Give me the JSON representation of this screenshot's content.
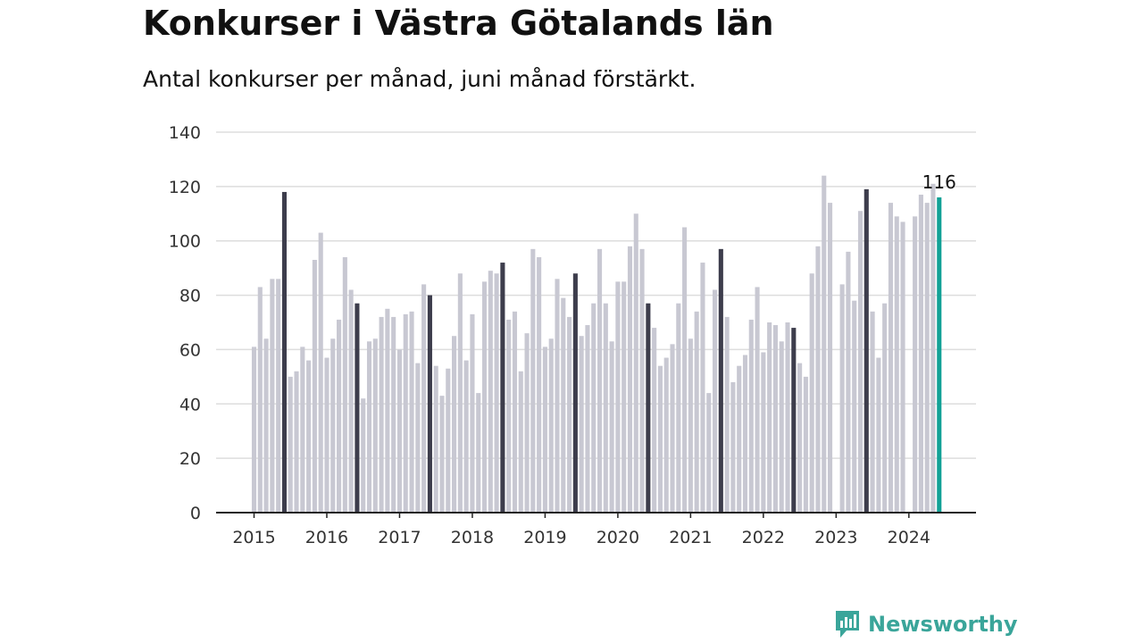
{
  "page": {
    "title": "Konkurser i Västra Götalands län",
    "subtitle": "Antal konkurser per månad, juni månad förstärkt."
  },
  "brand": {
    "name": "Newsworthy",
    "icon": "newsworthy-logo-icon",
    "color": "#3aa59a"
  },
  "colors": {
    "base": "#c8c8d2",
    "highlight": "#3d3d4c",
    "latest": "#12a196",
    "grid": "#dddddd",
    "axis": "#222222"
  },
  "chart_data": {
    "type": "bar",
    "title": "Konkurser i Västra Götalands län",
    "subtitle": "Antal konkurser per månad, juni månad förstärkt.",
    "xlabel": "",
    "ylabel": "",
    "ylim": [
      0,
      140
    ],
    "yticks": [
      0,
      20,
      40,
      60,
      80,
      100,
      120,
      140
    ],
    "year_ticks": [
      "2015",
      "2016",
      "2017",
      "2018",
      "2019",
      "2020",
      "2021",
      "2022",
      "2023",
      "2024"
    ],
    "grid": true,
    "start": "2015-01",
    "values": [
      61,
      83,
      64,
      86,
      86,
      118,
      50,
      52,
      61,
      56,
      93,
      103,
      57,
      64,
      71,
      94,
      82,
      77,
      42,
      63,
      64,
      72,
      75,
      72,
      60,
      73,
      74,
      55,
      84,
      80,
      54,
      43,
      53,
      65,
      88,
      56,
      73,
      44,
      85,
      89,
      88,
      92,
      71,
      74,
      52,
      66,
      97,
      94,
      61,
      64,
      86,
      79,
      72,
      88,
      65,
      69,
      77,
      97,
      77,
      63,
      85,
      85,
      98,
      110,
      97,
      77,
      68,
      54,
      57,
      62,
      77,
      105,
      64,
      74,
      92,
      44,
      82,
      97,
      72,
      48,
      54,
      58,
      71,
      83,
      59,
      70,
      69,
      63,
      70,
      68,
      55,
      50,
      88,
      98,
      124,
      114,
      null,
      84,
      96,
      78,
      111,
      119,
      74,
      57,
      77,
      114,
      109,
      107,
      null,
      109,
      117,
      114,
      121,
      116
    ],
    "highlight_month": 6,
    "annotations": [
      {
        "label": "116",
        "month": "2024-06"
      }
    ]
  }
}
